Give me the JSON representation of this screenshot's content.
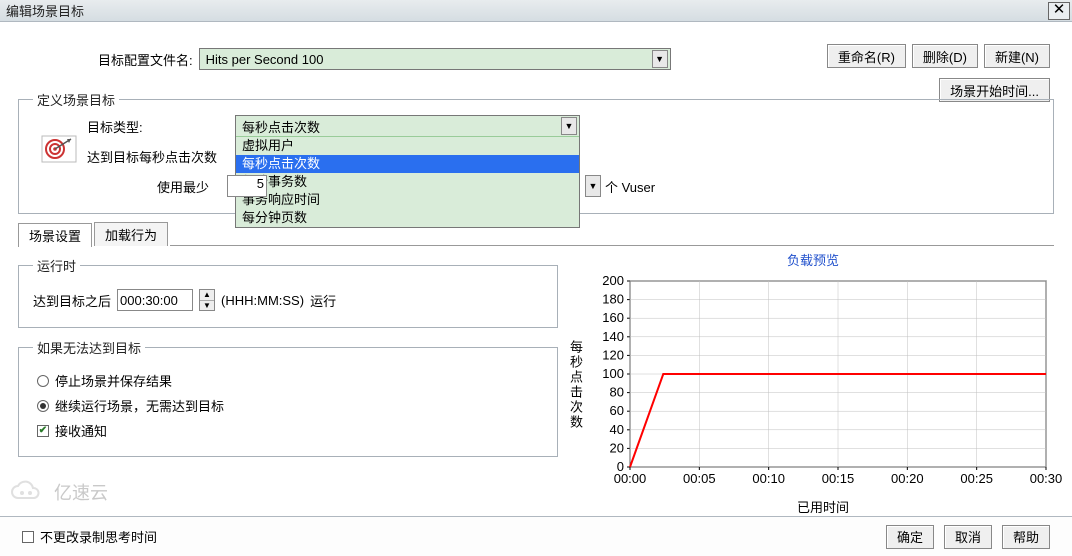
{
  "window": {
    "title": "编辑场景目标"
  },
  "config": {
    "label": "目标配置文件名:",
    "value": "Hits per Second 100"
  },
  "buttons": {
    "rename": "重命名(R)",
    "rename_u": "R",
    "delete": "删除(D)",
    "delete_u": "D",
    "new": "新建(N)",
    "new_u": "N",
    "scene_start": "场景开始时间...",
    "ok": "确定",
    "cancel": "取消",
    "help": "帮助"
  },
  "goal": {
    "legend": "定义场景目标",
    "type_label": "目标类型:",
    "type_selected": "每秒点击次数",
    "options": [
      "虚拟用户",
      "每秒点击次数",
      "每秒事务数",
      "事务响应时间",
      "每分钟页数"
    ],
    "selected_index": 1,
    "reach_label": "达到目标每秒点击次数",
    "minmax_label": "使用最少",
    "min_value": "5",
    "vuser_unit": "个 Vuser",
    "to_arrow": "个"
  },
  "tabs": {
    "scene": "场景设置",
    "load": "加载行为"
  },
  "runtime": {
    "legend": "运行时",
    "reach_after": "达到目标之后",
    "time": "000:30:00",
    "format": "(HHH:MM:SS)",
    "run": "运行"
  },
  "fallback": {
    "legend": "如果无法达到目标",
    "opt_stop": "停止场景并保存结果",
    "opt_continue": "继续运行场景，无需达到目标",
    "selected": 1,
    "notify": "接收通知",
    "notify_checked": true
  },
  "chart": {
    "title": "负载预览",
    "y_label": "每秒点击次数",
    "x_label": "已用时间",
    "y_max": 200,
    "y_step": 20,
    "x_ticks": [
      "00:00",
      "00:05",
      "00:10",
      "00:15",
      "00:20",
      "00:25",
      "00:30"
    ],
    "line_color": "#ff0000",
    "grid_color": "#c0c0c0",
    "axis_color": "#000000",
    "bg": "#ffffff",
    "points": [
      [
        0,
        0
      ],
      [
        0.08,
        100
      ],
      [
        1,
        100
      ]
    ]
  },
  "footer": {
    "no_modify_think": "不更改录制思考时间",
    "no_modify_checked": false
  },
  "watermark": "亿速云"
}
